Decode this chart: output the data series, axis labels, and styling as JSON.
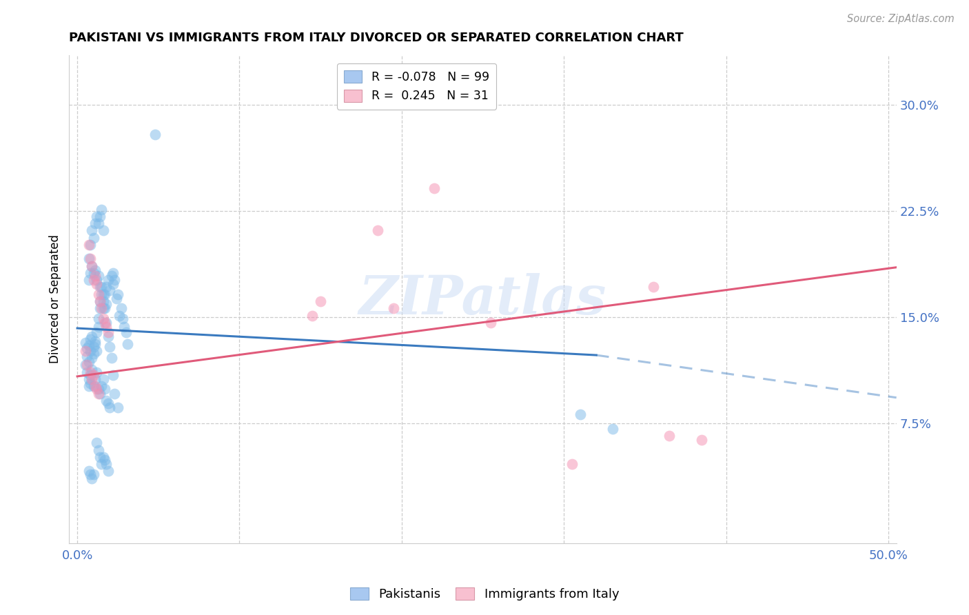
{
  "title": "PAKISTANI VS IMMIGRANTS FROM ITALY DIVORCED OR SEPARATED CORRELATION CHART",
  "source": "Source: ZipAtlas.com",
  "xlabel_ticks_show": [
    "0.0%",
    "50.0%"
  ],
  "xlabel_vals_show": [
    0.0,
    0.5
  ],
  "xlabel_vals_grid": [
    0.0,
    0.1,
    0.2,
    0.3,
    0.4,
    0.5
  ],
  "ylabel": "Divorced or Separated",
  "ylabel_ticks": [
    "7.5%",
    "15.0%",
    "22.5%",
    "30.0%"
  ],
  "ylabel_vals": [
    0.075,
    0.15,
    0.225,
    0.3
  ],
  "xlim": [
    -0.005,
    0.505
  ],
  "ylim": [
    -0.01,
    0.335
  ],
  "watermark": "ZIPatlas",
  "blue_color": "#7ab8e8",
  "pink_color": "#f48fb1",
  "blue_line_color": "#3a7abf",
  "pink_line_color": "#e05a7a",
  "blue_scatter": [
    [
      0.005,
      0.132
    ],
    [
      0.006,
      0.128
    ],
    [
      0.007,
      0.13
    ],
    [
      0.006,
      0.122
    ],
    [
      0.008,
      0.134
    ],
    [
      0.007,
      0.118
    ],
    [
      0.008,
      0.126
    ],
    [
      0.009,
      0.136
    ],
    [
      0.009,
      0.121
    ],
    [
      0.01,
      0.129
    ],
    [
      0.01,
      0.124
    ],
    [
      0.011,
      0.131
    ],
    [
      0.011,
      0.133
    ],
    [
      0.012,
      0.139
    ],
    [
      0.012,
      0.126
    ],
    [
      0.013,
      0.143
    ],
    [
      0.013,
      0.149
    ],
    [
      0.014,
      0.156
    ],
    [
      0.014,
      0.161
    ],
    [
      0.015,
      0.166
    ],
    [
      0.015,
      0.171
    ],
    [
      0.016,
      0.156
    ],
    [
      0.016,
      0.161
    ],
    [
      0.017,
      0.166
    ],
    [
      0.018,
      0.159
    ],
    [
      0.018,
      0.171
    ],
    [
      0.019,
      0.176
    ],
    [
      0.02,
      0.169
    ],
    [
      0.021,
      0.179
    ],
    [
      0.022,
      0.173
    ],
    [
      0.022,
      0.181
    ],
    [
      0.023,
      0.176
    ],
    [
      0.024,
      0.163
    ],
    [
      0.025,
      0.166
    ],
    [
      0.026,
      0.151
    ],
    [
      0.027,
      0.156
    ],
    [
      0.028,
      0.149
    ],
    [
      0.029,
      0.143
    ],
    [
      0.03,
      0.139
    ],
    [
      0.031,
      0.131
    ],
    [
      0.005,
      0.116
    ],
    [
      0.006,
      0.111
    ],
    [
      0.007,
      0.106
    ],
    [
      0.007,
      0.101
    ],
    [
      0.008,
      0.109
    ],
    [
      0.008,
      0.103
    ],
    [
      0.009,
      0.113
    ],
    [
      0.01,
      0.101
    ],
    [
      0.011,
      0.106
    ],
    [
      0.012,
      0.111
    ],
    [
      0.013,
      0.099
    ],
    [
      0.014,
      0.096
    ],
    [
      0.015,
      0.101
    ],
    [
      0.016,
      0.106
    ],
    [
      0.017,
      0.099
    ],
    [
      0.018,
      0.091
    ],
    [
      0.019,
      0.089
    ],
    [
      0.02,
      0.086
    ],
    [
      0.007,
      0.191
    ],
    [
      0.008,
      0.201
    ],
    [
      0.009,
      0.211
    ],
    [
      0.01,
      0.206
    ],
    [
      0.011,
      0.216
    ],
    [
      0.012,
      0.221
    ],
    [
      0.013,
      0.216
    ],
    [
      0.014,
      0.221
    ],
    [
      0.015,
      0.226
    ],
    [
      0.016,
      0.211
    ],
    [
      0.007,
      0.176
    ],
    [
      0.008,
      0.181
    ],
    [
      0.009,
      0.186
    ],
    [
      0.01,
      0.181
    ],
    [
      0.011,
      0.183
    ],
    [
      0.012,
      0.176
    ],
    [
      0.013,
      0.179
    ],
    [
      0.014,
      0.171
    ],
    [
      0.016,
      0.166
    ],
    [
      0.017,
      0.156
    ],
    [
      0.018,
      0.146
    ],
    [
      0.019,
      0.136
    ],
    [
      0.02,
      0.129
    ],
    [
      0.021,
      0.121
    ],
    [
      0.022,
      0.109
    ],
    [
      0.023,
      0.096
    ],
    [
      0.025,
      0.086
    ],
    [
      0.012,
      0.061
    ],
    [
      0.013,
      0.056
    ],
    [
      0.014,
      0.051
    ],
    [
      0.015,
      0.046
    ],
    [
      0.016,
      0.051
    ],
    [
      0.017,
      0.049
    ],
    [
      0.018,
      0.046
    ],
    [
      0.019,
      0.041
    ],
    [
      0.007,
      0.041
    ],
    [
      0.008,
      0.039
    ],
    [
      0.009,
      0.036
    ],
    [
      0.01,
      0.039
    ],
    [
      0.31,
      0.081
    ],
    [
      0.33,
      0.071
    ],
    [
      0.048,
      0.279
    ]
  ],
  "pink_scatter": [
    [
      0.005,
      0.126
    ],
    [
      0.007,
      0.201
    ],
    [
      0.008,
      0.191
    ],
    [
      0.009,
      0.186
    ],
    [
      0.01,
      0.176
    ],
    [
      0.011,
      0.179
    ],
    [
      0.012,
      0.173
    ],
    [
      0.013,
      0.166
    ],
    [
      0.014,
      0.161
    ],
    [
      0.015,
      0.156
    ],
    [
      0.016,
      0.149
    ],
    [
      0.017,
      0.146
    ],
    [
      0.018,
      0.143
    ],
    [
      0.019,
      0.139
    ],
    [
      0.006,
      0.116
    ],
    [
      0.008,
      0.111
    ],
    [
      0.009,
      0.106
    ],
    [
      0.01,
      0.109
    ],
    [
      0.011,
      0.101
    ],
    [
      0.012,
      0.099
    ],
    [
      0.013,
      0.096
    ],
    [
      0.22,
      0.241
    ],
    [
      0.185,
      0.211
    ],
    [
      0.355,
      0.171
    ],
    [
      0.15,
      0.161
    ],
    [
      0.195,
      0.156
    ],
    [
      0.145,
      0.151
    ],
    [
      0.255,
      0.146
    ],
    [
      0.365,
      0.066
    ],
    [
      0.385,
      0.063
    ],
    [
      0.305,
      0.046
    ]
  ],
  "blue_line": {
    "x": [
      0.0,
      0.32
    ],
    "y": [
      0.142,
      0.123
    ]
  },
  "blue_line_dash": {
    "x": [
      0.32,
      0.505
    ],
    "y": [
      0.123,
      0.093
    ]
  },
  "pink_line": {
    "x": [
      0.0,
      0.505
    ],
    "y": [
      0.108,
      0.185
    ]
  }
}
